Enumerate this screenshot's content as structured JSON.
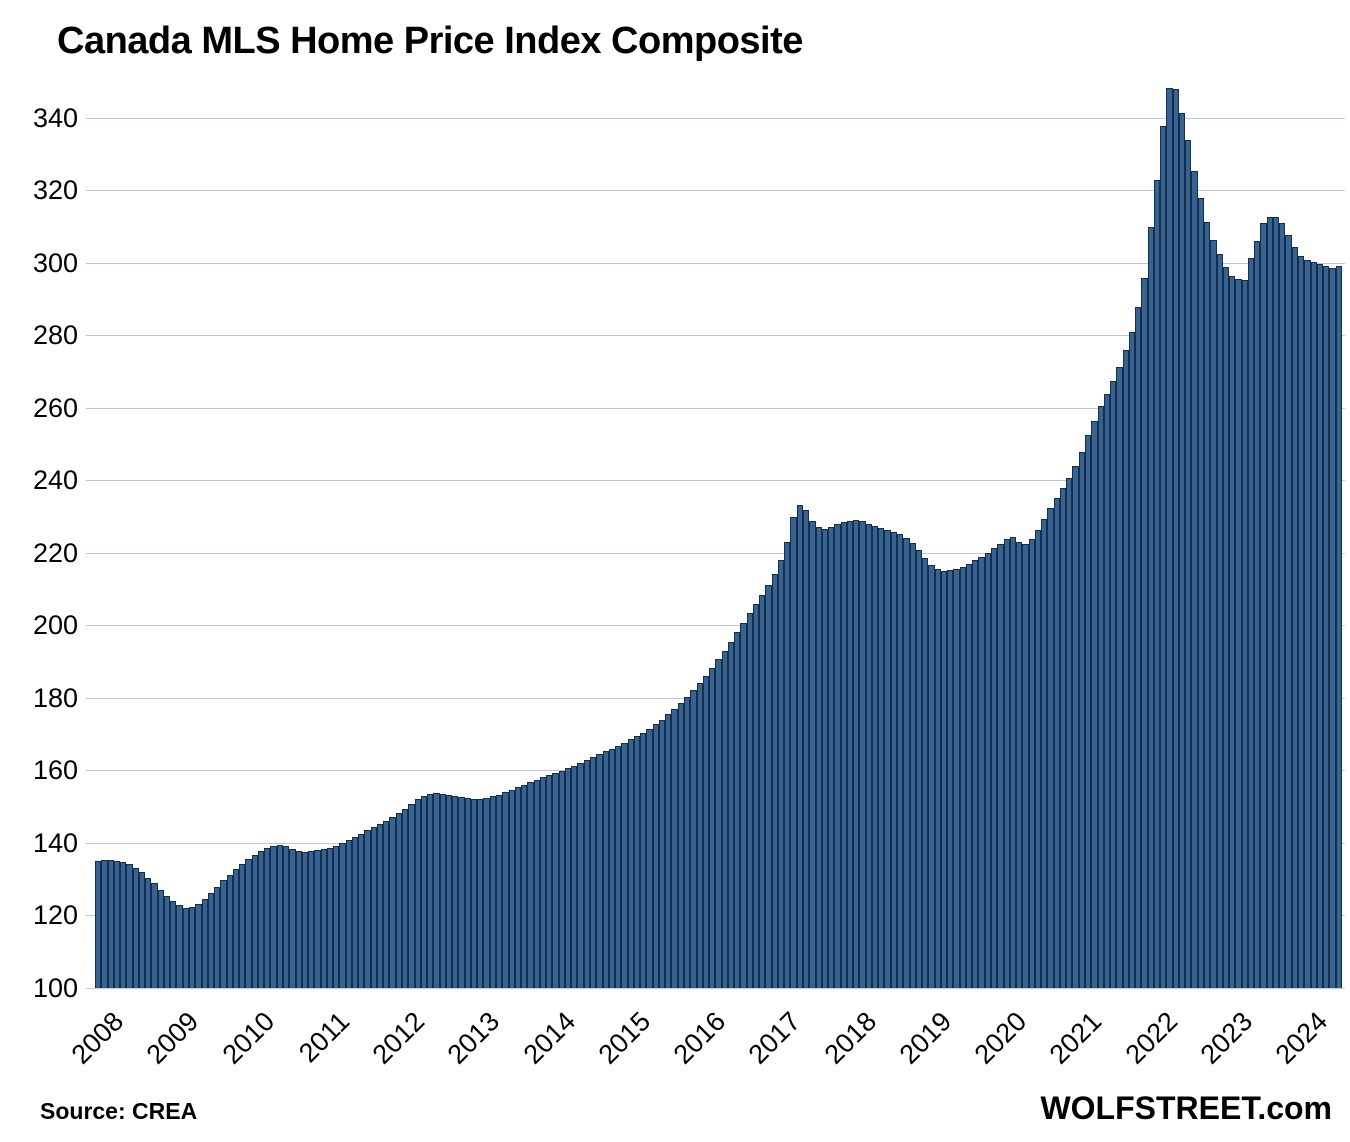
{
  "title": "Canada MLS Home Price Index Composite",
  "source_note": "Source: CREA",
  "branding": "WOLFSTREET.com",
  "colors": {
    "bar_fill": "#386390",
    "bar_border": "#142f4e",
    "gridline": "#b9cade",
    "baseline": "#c4cdd8",
    "text": "#000000",
    "background": "#ffffff"
  },
  "chart_data": {
    "type": "bar",
    "title": "Canada MLS Home Price Index Composite",
    "xlabel": "",
    "ylabel": "",
    "frequency": "monthly",
    "x_start": "2008-01",
    "x_end": "2024-07",
    "x_tick_labels": [
      "2008",
      "2009",
      "2010",
      "2011",
      "2012",
      "2013",
      "2014",
      "2015",
      "2016",
      "2017",
      "2018",
      "2019",
      "2020",
      "2021",
      "2022",
      "2023",
      "2024"
    ],
    "ylim": [
      100,
      351
    ],
    "yticks": [
      100,
      120,
      140,
      160,
      180,
      200,
      220,
      240,
      260,
      280,
      300,
      320,
      340
    ],
    "grid": "horizontal",
    "legend": "none",
    "values": [
      135.0,
      135.3,
      135.4,
      135.2,
      134.8,
      134.1,
      133.1,
      131.9,
      130.5,
      128.9,
      127.1,
      125.3,
      123.9,
      122.8,
      122.0,
      122.3,
      123.3,
      124.7,
      126.3,
      128.0,
      129.7,
      131.3,
      132.8,
      134.2,
      135.5,
      136.7,
      137.8,
      138.7,
      139.3,
      139.5,
      139.1,
      138.4,
      137.8,
      137.6,
      137.8,
      138.0,
      138.3,
      138.6,
      139.2,
      139.9,
      140.8,
      141.7,
      142.6,
      143.5,
      144.4,
      145.3,
      146.2,
      147.1,
      148.2,
      149.5,
      150.9,
      152.2,
      153.1,
      153.6,
      153.7,
      153.5,
      153.2,
      152.9,
      152.6,
      152.4,
      152.3,
      152.3,
      152.5,
      152.9,
      153.4,
      154.0,
      154.7,
      155.4,
      156.1,
      156.8,
      157.5,
      158.2,
      158.8,
      159.4,
      160.0,
      160.7,
      161.4,
      162.1,
      162.9,
      163.7,
      164.5,
      165.3,
      166.1,
      166.9,
      167.7,
      168.6,
      169.5,
      170.5,
      171.6,
      172.8,
      174.1,
      175.5,
      177.0,
      178.7,
      180.4,
      182.2,
      184.1,
      186.2,
      188.4,
      190.7,
      193.1,
      195.6,
      198.2,
      200.8,
      203.4,
      206.0,
      208.6,
      211.3,
      214.3,
      218.1,
      223.2,
      230.1,
      233.4,
      231.8,
      229.0,
      227.2,
      226.6,
      227.2,
      228.1,
      228.6,
      229.0,
      229.2,
      228.8,
      228.2,
      227.6,
      227.0,
      226.4,
      225.8,
      225.2,
      224.2,
      222.8,
      221.0,
      218.8,
      216.8,
      215.6,
      215.2,
      215.3,
      215.7,
      216.3,
      217.1,
      218.0,
      219.0,
      220.2,
      221.5,
      222.6,
      223.8,
      224.6,
      223.0,
      222.5,
      223.8,
      226.5,
      229.5,
      232.5,
      235.3,
      238.0,
      240.8,
      244.0,
      248.0,
      252.5,
      256.5,
      260.5,
      264.0,
      267.5,
      271.5,
      276.0,
      281.0,
      288.0,
      296.0,
      310.0,
      323.0,
      338.0,
      348.3,
      348.0,
      341.5,
      334.0,
      325.5,
      318.0,
      311.5,
      306.5,
      302.5,
      299.0,
      296.5,
      295.6,
      295.3,
      301.4,
      306.3,
      311.0,
      312.7,
      312.7,
      311.0,
      307.7,
      304.4,
      301.9,
      300.8,
      300.3,
      299.7,
      299.4,
      298.8,
      299.2
    ]
  }
}
